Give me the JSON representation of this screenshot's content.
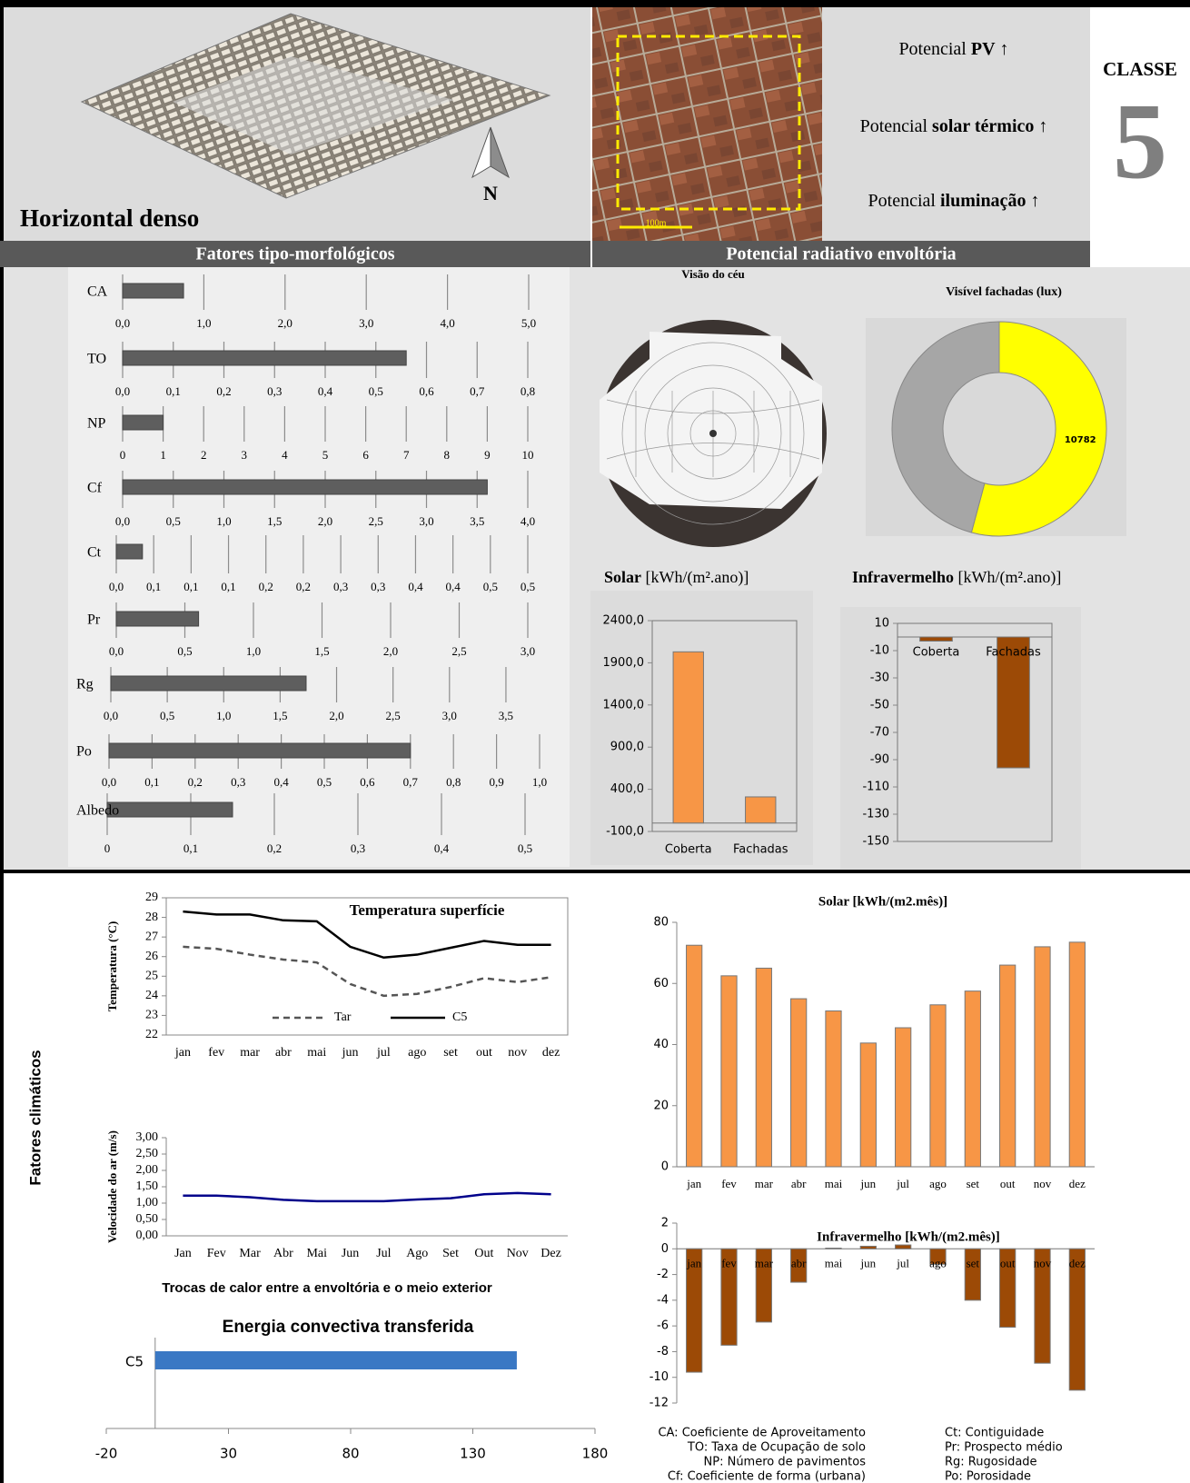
{
  "header": {
    "model_label": "Horizontal denso",
    "north": "N",
    "scale_label": "100m",
    "potentials": [
      {
        "prefix": "Potencial",
        "emphasis": "PV",
        "arrow": "↑"
      },
      {
        "prefix": "Potencial",
        "emphasis": "solar térmico",
        "arrow": "↑"
      },
      {
        "prefix": "Potencial",
        "emphasis": "iluminação",
        "arrow": "↑"
      }
    ],
    "class_label": "CLASSE",
    "class_number": "5"
  },
  "section_titles": [
    "Fatores tipo-morfológicos",
    "Potencial radiativo envoltória"
  ],
  "sky_view_title": "Visão do céu",
  "climate_title": "Fatores climáticos",
  "heat_exchange_title": "Trocas de calor entre a envoltória e o meio exterior",
  "glossary": [
    "CA: Coeficiente de Aproveitamento",
    "TO: Taxa de Ocupação de solo",
    "NP: Número de pavimentos",
    "Cf: Coeficiente de forma (urbana)",
    "Ct: Contiguidade",
    "Pr: Prospecto médio",
    "Rg: Rugosidade",
    "Po: Porosidade"
  ],
  "chart_data": [
    {
      "type": "hbar",
      "categories": [
        "CA"
      ],
      "values": [
        0.75
      ],
      "color": "#5e5e5e",
      "xlim": [
        0,
        5
      ],
      "xticks": [
        {
          "value": 0,
          "label": "0,0"
        },
        {
          "value": 1,
          "label": "1,0"
        },
        {
          "value": 2,
          "label": "2,0"
        },
        {
          "value": 3,
          "label": "3,0"
        },
        {
          "value": 4,
          "label": "4,0"
        },
        {
          "value": 5,
          "label": "5,0"
        }
      ]
    },
    {
      "type": "hbar",
      "categories": [
        "TO"
      ],
      "values": [
        0.56
      ],
      "color": "#5e5e5e",
      "xlim": [
        0,
        0.8
      ],
      "xticks": [
        {
          "value": 0,
          "label": "0,0"
        },
        {
          "value": 0.1,
          "label": "0,1"
        },
        {
          "value": 0.2,
          "label": "0,2"
        },
        {
          "value": 0.3,
          "label": "0,3"
        },
        {
          "value": 0.4,
          "label": "0,4"
        },
        {
          "value": 0.5,
          "label": "0,5"
        },
        {
          "value": 0.6,
          "label": "0,6"
        },
        {
          "value": 0.7,
          "label": "0,7"
        },
        {
          "value": 0.8,
          "label": "0,8"
        }
      ]
    },
    {
      "type": "hbar",
      "categories": [
        "NP"
      ],
      "values": [
        1
      ],
      "color": "#5e5e5e",
      "xlim": [
        0,
        10
      ],
      "xticks": [
        0,
        1,
        2,
        3,
        4,
        5,
        6,
        7,
        8,
        9,
        10
      ]
    },
    {
      "type": "hbar",
      "categories": [
        "Cf"
      ],
      "values": [
        3.6
      ],
      "color": "#5e5e5e",
      "xlim": [
        0,
        4
      ],
      "xticks": [
        {
          "value": 0,
          "label": "0,0"
        },
        {
          "value": 0.5,
          "label": "0,5"
        },
        {
          "value": 1,
          "label": "1,0"
        },
        {
          "value": 1.5,
          "label": "1,5"
        },
        {
          "value": 2,
          "label": "2,0"
        },
        {
          "value": 2.5,
          "label": "2,5"
        },
        {
          "value": 3,
          "label": "3,0"
        },
        {
          "value": 3.5,
          "label": "3,5"
        },
        {
          "value": 4,
          "label": "4,0"
        }
      ]
    },
    {
      "type": "hbar",
      "categories": [
        "Ct"
      ],
      "values": [
        0.035
      ],
      "color": "#5e5e5e",
      "xlim": [
        0,
        0.55
      ],
      "xticks": [
        {
          "value": 0,
          "label": "0,0"
        },
        {
          "value": 0.05,
          "label": "0,1"
        },
        {
          "value": 0.1,
          "label": "0,1"
        },
        {
          "value": 0.15,
          "label": "0,1"
        },
        {
          "value": 0.2,
          "label": "0,2"
        },
        {
          "value": 0.25,
          "label": "0,2"
        },
        {
          "value": 0.3,
          "label": "0,3"
        },
        {
          "value": 0.35,
          "label": "0,3"
        },
        {
          "value": 0.4,
          "label": "0,4"
        },
        {
          "value": 0.45,
          "label": "0,4"
        },
        {
          "value": 0.5,
          "label": "0,5"
        },
        {
          "value": 0.55,
          "label": "0,5"
        }
      ]
    },
    {
      "type": "hbar",
      "categories": [
        "Pr"
      ],
      "values": [
        0.6
      ],
      "color": "#5e5e5e",
      "xlim": [
        0,
        3
      ],
      "xticks": [
        {
          "value": 0,
          "label": "0,0"
        },
        {
          "value": 0.5,
          "label": "0,5"
        },
        {
          "value": 1,
          "label": "1,0"
        },
        {
          "value": 1.5,
          "label": "1,5"
        },
        {
          "value": 2,
          "label": "2,0"
        },
        {
          "value": 2.5,
          "label": "2,5"
        },
        {
          "value": 3,
          "label": "3,0"
        }
      ]
    },
    {
      "type": "hbar",
      "categories": [
        "Rg"
      ],
      "values": [
        1.73
      ],
      "color": "#5e5e5e",
      "xlim": [
        0,
        3.75
      ],
      "xticks": [
        {
          "value": 0,
          "label": "0,0"
        },
        {
          "value": 0.5,
          "label": "0,5"
        },
        {
          "value": 1,
          "label": "1,0"
        },
        {
          "value": 1.5,
          "label": "1,5"
        },
        {
          "value": 2,
          "label": "2,0"
        },
        {
          "value": 2.5,
          "label": "2,5"
        },
        {
          "value": 3,
          "label": "3,0"
        },
        {
          "value": 3.5,
          "label": "3,5"
        }
      ]
    },
    {
      "type": "hbar",
      "categories": [
        "Po"
      ],
      "values": [
        0.7
      ],
      "color": "#5e5e5e",
      "xlim": [
        0,
        1
      ],
      "xticks": [
        {
          "value": 0,
          "label": "0,0"
        },
        {
          "value": 0.1,
          "label": "0,1"
        },
        {
          "value": 0.2,
          "label": "0,2"
        },
        {
          "value": 0.3,
          "label": "0,3"
        },
        {
          "value": 0.4,
          "label": "0,4"
        },
        {
          "value": 0.5,
          "label": "0,5"
        },
        {
          "value": 0.6,
          "label": "0,6"
        },
        {
          "value": 0.7,
          "label": "0,7"
        },
        {
          "value": 0.8,
          "label": "0,8"
        },
        {
          "value": 0.9,
          "label": "0,9"
        },
        {
          "value": 1,
          "label": "1,0"
        }
      ]
    },
    {
      "type": "hbar",
      "categories": [
        "Albedo"
      ],
      "values": [
        0.15
      ],
      "color": "#5e5e5e",
      "xlim": [
        0,
        0.5
      ],
      "xticks": [
        0,
        {
          "value": 0.1,
          "label": "0,1"
        },
        {
          "value": 0.2,
          "label": "0,2"
        },
        {
          "value": 0.3,
          "label": "0,3"
        },
        {
          "value": 0.4,
          "label": "0,4"
        },
        {
          "value": 0.5,
          "label": "0,5"
        }
      ]
    },
    {
      "type": "donut",
      "title": "Visível fachadas (lux)",
      "values": [
        10782,
        9120
      ],
      "colors": [
        "#ffff00",
        "#a6a6a6"
      ]
    },
    {
      "type": "bar",
      "title": "Solar",
      "unit": "[kWh/(m².ano)]",
      "categories": [
        "Coberta",
        "Fachadas"
      ],
      "values": [
        2030,
        310
      ],
      "color": "#f79646",
      "ylim": [
        -100,
        2400
      ],
      "yticks": [
        {
          "value": -100,
          "label": "-100,0"
        },
        {
          "value": 400,
          "label": "400,0"
        },
        {
          "value": 900,
          "label": "900,0"
        },
        {
          "value": 1400,
          "label": "1400,0"
        },
        {
          "value": 1900,
          "label": "1900,0"
        },
        {
          "value": 2400,
          "label": "2400,0"
        }
      ]
    },
    {
      "type": "bar",
      "title": "Infravermelho",
      "unit": "[kWh/(m².ano)]",
      "categories": [
        "Coberta",
        "Fachadas"
      ],
      "values": [
        -3,
        -96
      ],
      "color": "#9c4a06",
      "ylim": [
        -150,
        10
      ],
      "yticks": [
        10,
        -10,
        -30,
        -50,
        -70,
        -90,
        -110,
        -130,
        -150
      ]
    },
    {
      "type": "line",
      "title": "Temperatura superfície",
      "ylabel": "Temperatura (°C)",
      "categories": [
        "jan",
        "fev",
        "mar",
        "abr",
        "mai",
        "jun",
        "jul",
        "ago",
        "set",
        "out",
        "nov",
        "dez"
      ],
      "series": [
        {
          "name": "Tar",
          "color": "#555555",
          "line_style": "dashed",
          "values": [
            26.5,
            26.4,
            26.1,
            25.85,
            25.7,
            24.6,
            24.0,
            24.1,
            24.45,
            24.9,
            24.7,
            24.95
          ]
        },
        {
          "name": "C5",
          "color": "#000000",
          "line_style": "solid",
          "values": [
            28.3,
            28.15,
            28.15,
            27.85,
            27.8,
            26.5,
            25.95,
            26.1,
            26.45,
            26.8,
            26.6,
            26.6
          ]
        }
      ],
      "ylim": [
        22,
        29
      ],
      "yticks": [
        22,
        23,
        24,
        25,
        26,
        27,
        28,
        29
      ]
    },
    {
      "type": "line",
      "ylabel": "Velocidade do ar (m/s)",
      "categories": [
        "Jan",
        "Fev",
        "Mar",
        "Abr",
        "Mai",
        "Jun",
        "Jul",
        "Ago",
        "Set",
        "Out",
        "Nov",
        "Dez"
      ],
      "series": [
        {
          "color": "#00008b",
          "line_style": "solid",
          "values": [
            1.23,
            1.23,
            1.18,
            1.1,
            1.06,
            1.06,
            1.06,
            1.11,
            1.15,
            1.27,
            1.31,
            1.27
          ]
        }
      ],
      "ylim": [
        0,
        3
      ],
      "yticks": [
        {
          "value": 0,
          "label": "0,00"
        },
        {
          "value": 0.5,
          "label": "0,50"
        },
        {
          "value": 1,
          "label": "1,00"
        },
        {
          "value": 1.5,
          "label": "1,50"
        },
        {
          "value": 2,
          "label": "2,00"
        },
        {
          "value": 2.5,
          "label": "2,50"
        },
        {
          "value": 3,
          "label": "3,00"
        }
      ]
    },
    {
      "type": "hbar",
      "title": "Energia convectiva transferida",
      "categories": [
        "C5"
      ],
      "values": [
        148
      ],
      "color": "#3a78c4",
      "xlim": [
        -20,
        180
      ],
      "xticks": [
        -20,
        30,
        80,
        130,
        180
      ]
    },
    {
      "type": "bar",
      "title": "Solar [kWh/(m2.mês)]",
      "categories": [
        "jan",
        "fev",
        "mar",
        "abr",
        "mai",
        "jun",
        "jul",
        "ago",
        "set",
        "out",
        "nov",
        "dez"
      ],
      "values": [
        72.5,
        62.5,
        65,
        55,
        51,
        40.5,
        45.5,
        53,
        57.5,
        66,
        72,
        73.5
      ],
      "color": "#f79646",
      "ylim": [
        0,
        80
      ],
      "yticks": [
        0,
        20,
        40,
        60,
        80
      ]
    },
    {
      "type": "bar",
      "title": "Infravermelho [kWh/(m2.mês)]",
      "categories": [
        "jan",
        "fev",
        "mar",
        "abr",
        "mai",
        "jun",
        "jul",
        "ago",
        "set",
        "out",
        "nov",
        "dez"
      ],
      "values": [
        -9.6,
        -7.5,
        -5.7,
        -2.6,
        0.05,
        0.2,
        0.3,
        -1.2,
        -4.0,
        -6.1,
        -8.9,
        -11.0
      ],
      "color": "#9c4a06",
      "ylim": [
        -12,
        2
      ],
      "yticks": [
        -12,
        -10,
        -8,
        -6,
        -4,
        -2,
        0,
        2
      ]
    }
  ]
}
